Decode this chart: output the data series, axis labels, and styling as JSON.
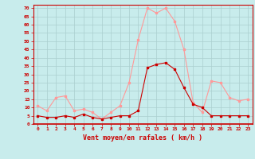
{
  "x": [
    0,
    1,
    2,
    3,
    4,
    5,
    6,
    7,
    8,
    9,
    10,
    11,
    12,
    13,
    14,
    15,
    16,
    17,
    18,
    19,
    20,
    21,
    22,
    23
  ],
  "rafales": [
    11,
    8,
    16,
    17,
    8,
    9,
    7,
    3,
    7,
    11,
    25,
    51,
    70,
    67,
    70,
    62,
    45,
    13,
    7,
    26,
    25,
    16,
    14,
    15
  ],
  "moyenne": [
    5,
    4,
    4,
    5,
    4,
    6,
    4,
    3,
    4,
    5,
    5,
    8,
    34,
    36,
    37,
    33,
    22,
    12,
    10,
    5,
    5,
    5,
    5,
    5
  ],
  "bg_color": "#c8ecec",
  "grid_color": "#aacfcf",
  "line_rafales_color": "#ff9999",
  "line_moyenne_color": "#cc0000",
  "xlabel": "Vent moyen/en rafales ( km/h )",
  "xlabel_color": "#cc0000",
  "ylabel_ticks": [
    0,
    5,
    10,
    15,
    20,
    25,
    30,
    35,
    40,
    45,
    50,
    55,
    60,
    65,
    70
  ],
  "tick_color": "#cc0000",
  "ylim": [
    0,
    72
  ],
  "xlim": [
    -0.5,
    23.5
  ]
}
